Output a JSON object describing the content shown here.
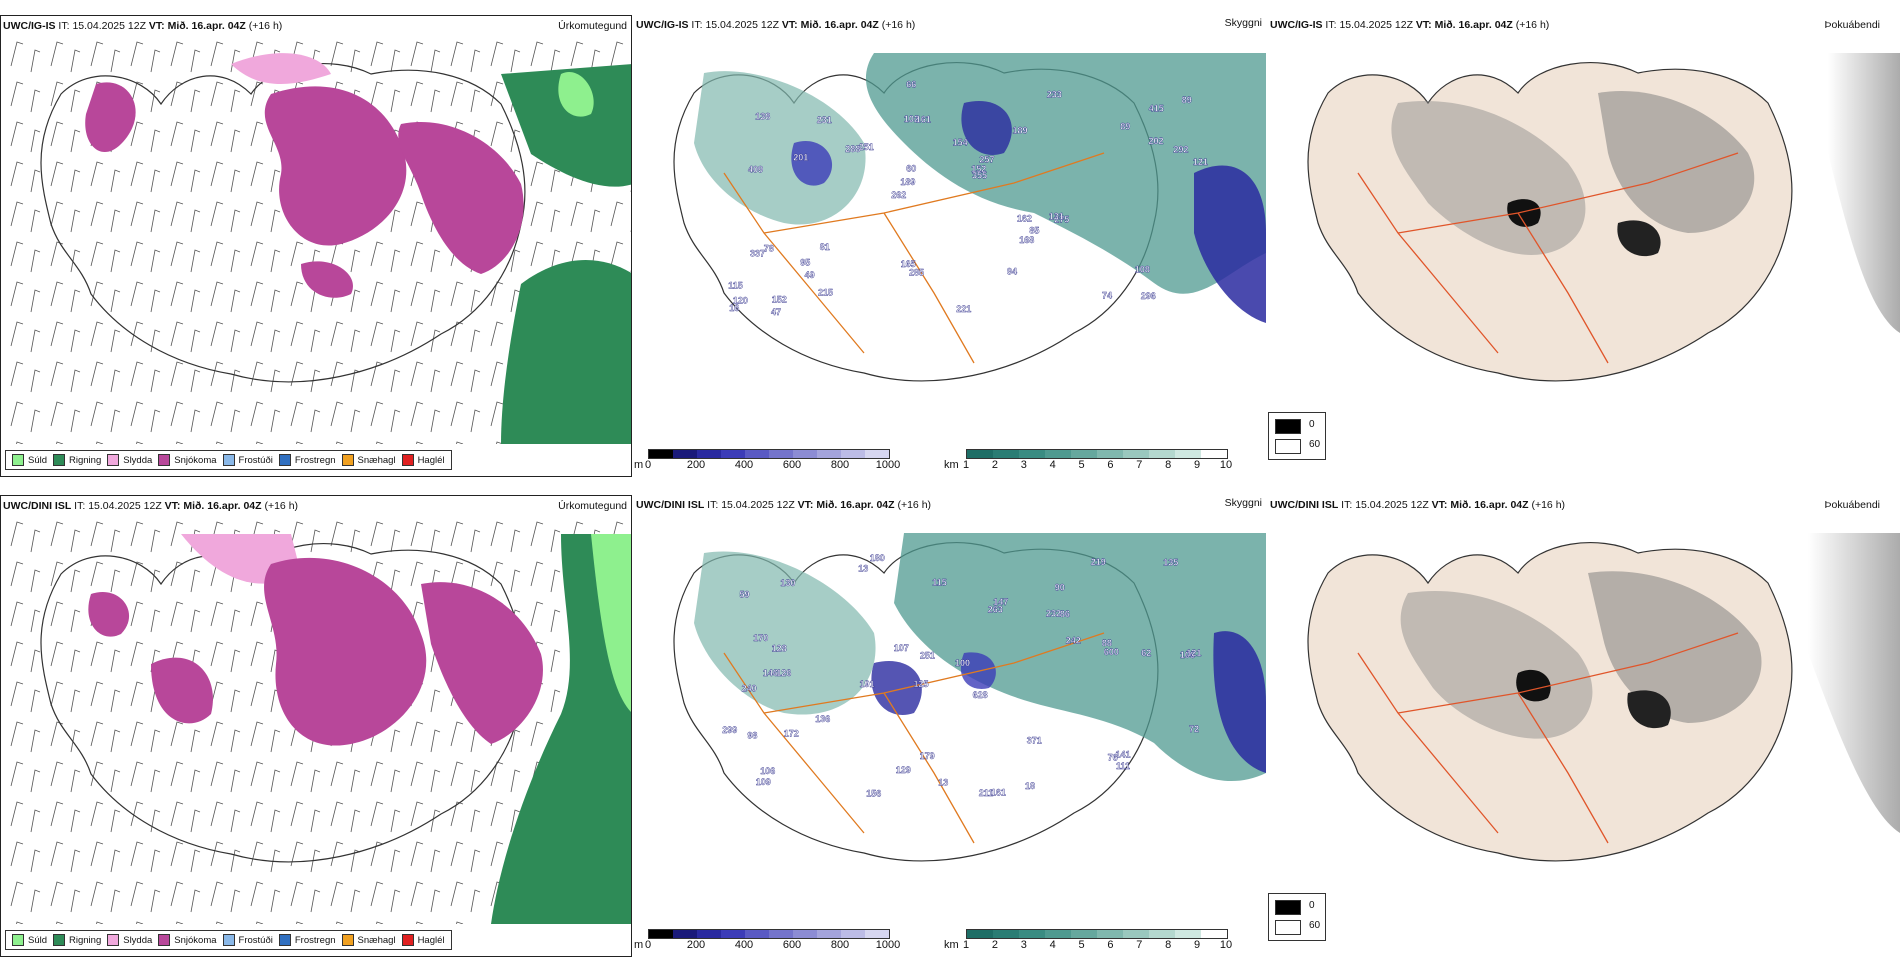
{
  "rows": [
    {
      "model": "UWC/IG-IS",
      "it_label": "IT:",
      "it_value": "15.04.2025 12Z",
      "vt_label": "VT:",
      "vt_value": "Mið. 16.apr. 04Z",
      "lead": "(+16 h)"
    },
    {
      "model": "UWC/DINI ISL",
      "it_label": "IT:",
      "it_value": "15.04.2025 12Z",
      "vt_label": "VT:",
      "vt_value": "Mið. 16.apr. 04Z",
      "lead": "(+16 h)"
    }
  ],
  "panel_types": {
    "precip": "Úrkomutegund",
    "cloud": "Skyggni",
    "fog": "Þokuábendi"
  },
  "precip_legend": [
    {
      "label": "Súld",
      "color": "#8ef08e"
    },
    {
      "label": "Rigning",
      "color": "#2e8b57"
    },
    {
      "label": "Slydda",
      "color": "#f0a8dc"
    },
    {
      "label": "Snjókoma",
      "color": "#b8479a"
    },
    {
      "label": "Frostúði",
      "color": "#8ab8e8"
    },
    {
      "label": "Frostregn",
      "color": "#2f6fc0"
    },
    {
      "label": "Snæhagl",
      "color": "#f0a020"
    },
    {
      "label": "Haglél",
      "color": "#e02020"
    }
  ],
  "ceiling_bar": {
    "unit": "m",
    "ticks": [
      "0",
      "200",
      "400",
      "600",
      "800",
      "1000"
    ],
    "colors": [
      "#000000",
      "#1a1a7a",
      "#2a2aa0",
      "#3c3cb8",
      "#5a5ac4",
      "#7474cc",
      "#8c8cd4",
      "#a4a4dc",
      "#bcbce6",
      "#d6d6f0"
    ]
  },
  "visibility_bar": {
    "unit": "km",
    "ticks": [
      "1",
      "2",
      "3",
      "4",
      "5",
      "6",
      "7",
      "8",
      "9",
      "10"
    ],
    "colors": [
      "#1e6e66",
      "#2a7d74",
      "#3a8c82",
      "#4f9a90",
      "#66a89e",
      "#80b8ae",
      "#9ac8be",
      "#b4d8cf",
      "#cfe8e1",
      "#ffffff"
    ]
  },
  "fog_index": {
    "high": "0",
    "low": "60"
  },
  "ceiling_labels_top": [
    "296",
    "409",
    "415",
    "262",
    "189",
    "152",
    "102",
    "154",
    "78",
    "251",
    "115",
    "49",
    "161",
    "257",
    "275",
    "138",
    "66",
    "121",
    "162",
    "202",
    "189",
    "165",
    "60",
    "231",
    "233",
    "81",
    "74",
    "108",
    "131",
    "221",
    "288",
    "201",
    "168",
    "215",
    "292",
    "152",
    "120",
    "285",
    "355",
    "337",
    "89",
    "89",
    "85",
    "94",
    "95",
    "47",
    "16"
  ],
  "ceiling_labels_bottom": [
    "180",
    "90",
    "106",
    "125",
    "628",
    "126",
    "59",
    "232",
    "240",
    "263",
    "100",
    "109",
    "13",
    "191",
    "211",
    "161",
    "179",
    "219",
    "242",
    "136",
    "128",
    "146",
    "121",
    "62",
    "299",
    "170",
    "251",
    "600",
    "141",
    "98",
    "76",
    "147",
    "172",
    "107",
    "371",
    "72",
    "88",
    "129",
    "135",
    "115",
    "106",
    "156",
    "18",
    "130",
    "13",
    "86",
    "111"
  ]
}
